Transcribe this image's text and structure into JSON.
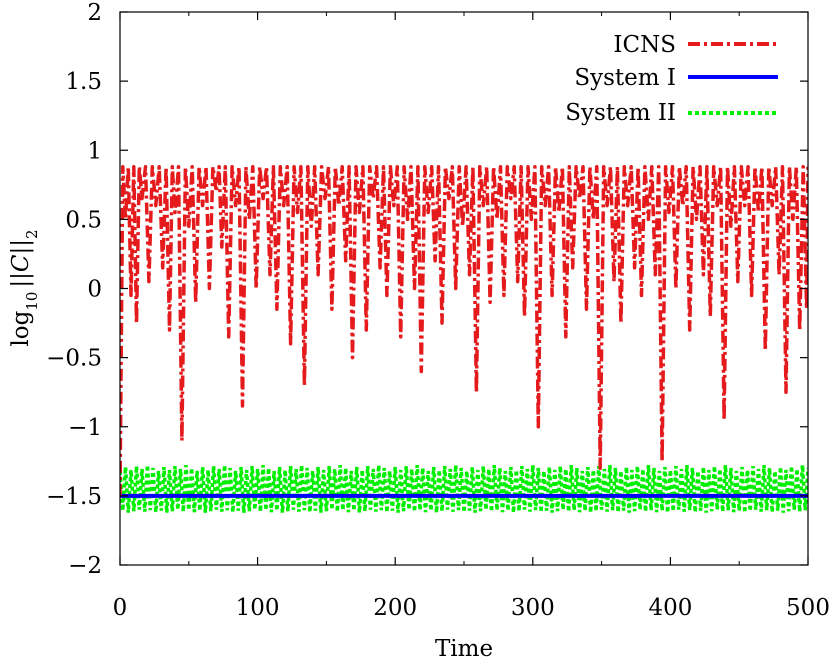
{
  "chart_data": {
    "type": "line",
    "title": "",
    "xlabel": "Time",
    "ylabel_parts": {
      "base": "log",
      "sub": "10",
      "norm_open": "||",
      "symbol": "C",
      "norm_close": "||",
      "norm_sub": "2"
    },
    "xlim": [
      0,
      500
    ],
    "ylim": [
      -2,
      2
    ],
    "xticks": [
      0,
      100,
      200,
      300,
      400,
      500
    ],
    "xtick_labels": [
      "0",
      "100",
      "200",
      "300",
      "400",
      "500"
    ],
    "yticks": [
      -2,
      -1.5,
      -1,
      -0.5,
      0,
      0.5,
      1,
      1.5,
      2
    ],
    "ytick_labels": [
      "−2",
      "−1.5",
      "−1",
      "−0.5",
      "0",
      "0.5",
      "1",
      "1.5",
      "2"
    ],
    "grid": false,
    "legend_position": "top-right",
    "series": [
      {
        "name": "ICNS",
        "color": "#e41a1c",
        "style": "dash-dot",
        "period": 5,
        "peak": 0.88,
        "x_start": 0,
        "y_start": -1.5,
        "minima": [
          {
            "x": 4,
            "y": 0.5
          },
          {
            "x": 8,
            "y": -0.05
          },
          {
            "x": 12,
            "y": -0.25
          },
          {
            "x": 16,
            "y": 0.65
          },
          {
            "x": 21,
            "y": 0.05
          },
          {
            "x": 26,
            "y": 0.6
          },
          {
            "x": 31,
            "y": 0.15
          },
          {
            "x": 36,
            "y": -0.3
          },
          {
            "x": 40,
            "y": 0.55
          },
          {
            "x": 45,
            "y": -1.1
          },
          {
            "x": 50,
            "y": 0.45
          },
          {
            "x": 55,
            "y": -0.1
          },
          {
            "x": 60,
            "y": 0.6
          },
          {
            "x": 65,
            "y": 0.0
          },
          {
            "x": 70,
            "y": 0.7
          },
          {
            "x": 74,
            "y": 0.3
          },
          {
            "x": 79,
            "y": -0.35
          },
          {
            "x": 84,
            "y": 0.6
          },
          {
            "x": 89,
            "y": -0.85
          },
          {
            "x": 94,
            "y": 0.5
          },
          {
            "x": 99,
            "y": 0.0
          },
          {
            "x": 104,
            "y": 0.65
          },
          {
            "x": 109,
            "y": 0.1
          },
          {
            "x": 114,
            "y": -0.15
          },
          {
            "x": 119,
            "y": 0.6
          },
          {
            "x": 124,
            "y": -0.4
          },
          {
            "x": 129,
            "y": 0.55
          },
          {
            "x": 134,
            "y": -0.7
          },
          {
            "x": 139,
            "y": 0.45
          },
          {
            "x": 144,
            "y": 0.1
          },
          {
            "x": 149,
            "y": 0.65
          },
          {
            "x": 154,
            "y": -0.15
          },
          {
            "x": 159,
            "y": 0.6
          },
          {
            "x": 164,
            "y": 0.2
          },
          {
            "x": 169,
            "y": -0.5
          },
          {
            "x": 174,
            "y": 0.55
          },
          {
            "x": 179,
            "y": -0.3
          },
          {
            "x": 184,
            "y": 0.65
          },
          {
            "x": 189,
            "y": 0.15
          },
          {
            "x": 194,
            "y": -0.05
          },
          {
            "x": 199,
            "y": 0.6
          },
          {
            "x": 204,
            "y": -0.35
          },
          {
            "x": 209,
            "y": 0.5
          },
          {
            "x": 214,
            "y": 0.0
          },
          {
            "x": 219,
            "y": -0.6
          },
          {
            "x": 224,
            "y": 0.55
          },
          {
            "x": 229,
            "y": 0.2
          },
          {
            "x": 234,
            "y": -0.25
          },
          {
            "x": 239,
            "y": 0.65
          },
          {
            "x": 244,
            "y": 0.0
          },
          {
            "x": 249,
            "y": 0.45
          },
          {
            "x": 254,
            "y": 0.1
          },
          {
            "x": 259,
            "y": -0.75
          },
          {
            "x": 264,
            "y": 0.6
          },
          {
            "x": 269,
            "y": -0.1
          },
          {
            "x": 274,
            "y": 0.5
          },
          {
            "x": 279,
            "y": -0.05
          },
          {
            "x": 284,
            "y": 0.65
          },
          {
            "x": 289,
            "y": 0.05
          },
          {
            "x": 294,
            "y": -0.2
          },
          {
            "x": 299,
            "y": 0.5
          },
          {
            "x": 304,
            "y": -1.0
          },
          {
            "x": 309,
            "y": 0.6
          },
          {
            "x": 314,
            "y": -0.05
          },
          {
            "x": 319,
            "y": 0.55
          },
          {
            "x": 324,
            "y": -0.35
          },
          {
            "x": 329,
            "y": 0.15
          },
          {
            "x": 334,
            "y": 0.65
          },
          {
            "x": 339,
            "y": -0.15
          },
          {
            "x": 344,
            "y": 0.5
          },
          {
            "x": 349,
            "y": -1.3
          },
          {
            "x": 354,
            "y": 0.6
          },
          {
            "x": 359,
            "y": 0.05
          },
          {
            "x": 364,
            "y": -0.25
          },
          {
            "x": 369,
            "y": 0.6
          },
          {
            "x": 374,
            "y": 0.15
          },
          {
            "x": 379,
            "y": -0.05
          },
          {
            "x": 384,
            "y": 0.5
          },
          {
            "x": 389,
            "y": 0.1
          },
          {
            "x": 394,
            "y": -1.25
          },
          {
            "x": 399,
            "y": 0.55
          },
          {
            "x": 404,
            "y": 0.0
          },
          {
            "x": 409,
            "y": 0.6
          },
          {
            "x": 414,
            "y": -0.3
          },
          {
            "x": 419,
            "y": 0.5
          },
          {
            "x": 424,
            "y": 0.1
          },
          {
            "x": 429,
            "y": -0.2
          },
          {
            "x": 434,
            "y": 0.6
          },
          {
            "x": 439,
            "y": -0.95
          },
          {
            "x": 444,
            "y": 0.45
          },
          {
            "x": 449,
            "y": 0.05
          },
          {
            "x": 454,
            "y": 0.6
          },
          {
            "x": 459,
            "y": -0.05
          },
          {
            "x": 464,
            "y": 0.55
          },
          {
            "x": 469,
            "y": -0.45
          },
          {
            "x": 474,
            "y": 0.6
          },
          {
            "x": 479,
            "y": 0.1
          },
          {
            "x": 484,
            "y": -0.75
          },
          {
            "x": 489,
            "y": 0.5
          },
          {
            "x": 494,
            "y": -0.3
          },
          {
            "x": 499,
            "y": -0.15
          }
        ]
      },
      {
        "name": "System I",
        "color": "#0000ff",
        "style": "solid",
        "x": [
          0,
          500
        ],
        "y": [
          -1.5,
          -1.5
        ]
      },
      {
        "name": "System II",
        "color": "#00ee00",
        "style": "dotted",
        "center": -1.47,
        "band_low": -1.6,
        "band_high": -1.32,
        "period": 4
      }
    ]
  }
}
